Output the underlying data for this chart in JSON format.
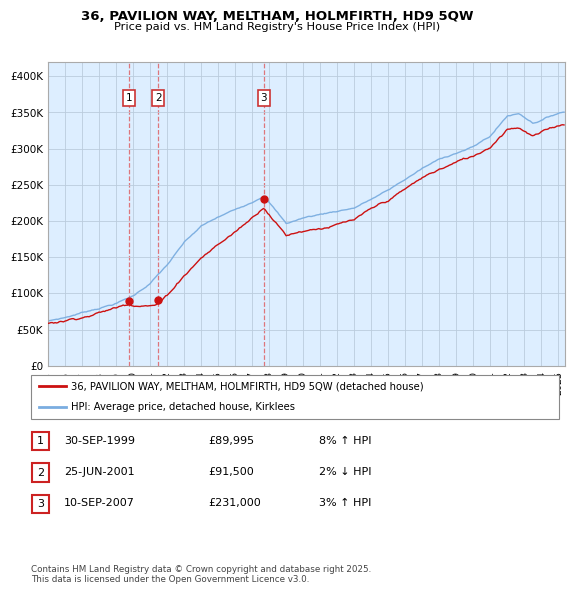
{
  "title": "36, PAVILION WAY, MELTHAM, HOLMFIRTH, HD9 5QW",
  "subtitle": "Price paid vs. HM Land Registry's House Price Index (HPI)",
  "xlim_start": 1995.0,
  "xlim_end": 2025.4,
  "ylim_min": 0,
  "ylim_max": 420000,
  "yticks": [
    0,
    50000,
    100000,
    150000,
    200000,
    250000,
    300000,
    350000,
    400000
  ],
  "ytick_labels": [
    "£0",
    "£50K",
    "£100K",
    "£150K",
    "£200K",
    "£250K",
    "£300K",
    "£350K",
    "£400K"
  ],
  "sale_dates": [
    1999.748,
    2001.479,
    2007.692
  ],
  "sale_prices": [
    89995,
    91500,
    231000
  ],
  "sale_labels": [
    "1",
    "2",
    "3"
  ],
  "hpi_color": "#7aade0",
  "price_color": "#cc1111",
  "dashed_color": "#dd4444",
  "chart_bg": "#ddeeff",
  "background_color": "#ffffff",
  "grid_color": "#bbccdd",
  "legend_label_red": "36, PAVILION WAY, MELTHAM, HOLMFIRTH, HD9 5QW (detached house)",
  "legend_label_blue": "HPI: Average price, detached house, Kirklees",
  "table_entries": [
    {
      "num": "1",
      "date": "30-SEP-1999",
      "price": "£89,995",
      "hpi": "8% ↑ HPI"
    },
    {
      "num": "2",
      "date": "25-JUN-2001",
      "price": "£91,500",
      "hpi": "2% ↓ HPI"
    },
    {
      "num": "3",
      "date": "10-SEP-2007",
      "price": "£231,000",
      "hpi": "3% ↑ HPI"
    }
  ],
  "footnote": "Contains HM Land Registry data © Crown copyright and database right 2025.\nThis data is licensed under the Open Government Licence v3.0.",
  "xticks": [
    1995,
    1996,
    1997,
    1998,
    1999,
    2000,
    2001,
    2002,
    2003,
    2004,
    2005,
    2006,
    2007,
    2008,
    2009,
    2010,
    2011,
    2012,
    2013,
    2014,
    2015,
    2016,
    2017,
    2018,
    2019,
    2020,
    2021,
    2022,
    2023,
    2024,
    2025
  ]
}
